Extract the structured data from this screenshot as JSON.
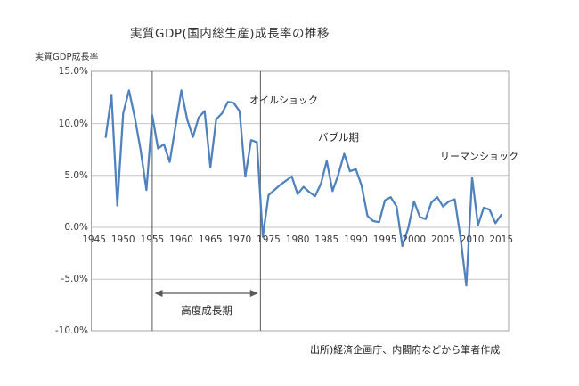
{
  "title": "実質GDP(国内総生産)成長率の推移",
  "axis_title": "実質GDP成長率",
  "source": "出所)経済企画庁、内閣府などから筆者作成",
  "annotations": {
    "oil_shock": "オイルショック",
    "bubble": "バブル期",
    "lehman": "リーマンショック",
    "high_growth": "高度成長期"
  },
  "colors": {
    "line": "#4f81bd",
    "gridline": "#c6c6c6",
    "plot_border": "#a6a6a6",
    "event_line": "#595959",
    "arrow": "#595959",
    "text": "#333333"
  },
  "chart_data": {
    "type": "line",
    "title": "実質GDP(国内総生産)成長率の推移",
    "ylabel": "実質GDP成長率",
    "xlabel": "",
    "ylim": [
      -10,
      15
    ],
    "xlim": [
      1945,
      2016.5
    ],
    "grid": true,
    "legend": "none",
    "y_ticks": [
      "15.0%",
      "10.0%",
      "5.0%",
      "0.0%",
      "-5.0%",
      "-10.0%"
    ],
    "y_tick_values": [
      15,
      10,
      5,
      0,
      -5,
      -10
    ],
    "x_ticks": [
      1945,
      1950,
      1955,
      1960,
      1965,
      1970,
      1975,
      1980,
      1985,
      1990,
      1995,
      2000,
      2005,
      2010,
      2015
    ],
    "event_line_years": [
      1955,
      1973.6
    ],
    "high_growth_arrow_span_years": [
      1955.4,
      1973.2
    ],
    "years": [
      1947,
      1948,
      1949,
      1950,
      1951,
      1952,
      1953,
      1954,
      1955,
      1956,
      1957,
      1958,
      1959,
      1960,
      1961,
      1962,
      1963,
      1964,
      1965,
      1966,
      1967,
      1968,
      1969,
      1970,
      1971,
      1972,
      1973,
      1974,
      1975,
      1976,
      1977,
      1978,
      1979,
      1980,
      1981,
      1982,
      1983,
      1984,
      1985,
      1986,
      1987,
      1988,
      1989,
      1990,
      1991,
      1992,
      1993,
      1994,
      1995,
      1996,
      1997,
      1998,
      1999,
      2000,
      2001,
      2002,
      2003,
      2004,
      2005,
      2006,
      2007,
      2008,
      2009,
      2010,
      2011,
      2012,
      2013,
      2014,
      2015
    ],
    "values": [
      8.7,
      12.7,
      2.1,
      11.0,
      13.2,
      10.6,
      7.5,
      3.6,
      10.8,
      7.6,
      8.0,
      6.3,
      9.7,
      13.2,
      10.4,
      8.7,
      10.6,
      11.2,
      5.8,
      10.4,
      11.0,
      12.1,
      12.0,
      11.2,
      4.9,
      8.4,
      8.2,
      -0.9,
      3.1,
      3.6,
      4.1,
      4.5,
      4.9,
      3.2,
      3.9,
      3.4,
      3.0,
      4.2,
      6.4,
      3.5,
      5.1,
      7.1,
      5.4,
      5.6,
      4.0,
      1.1,
      0.6,
      0.5,
      2.6,
      2.9,
      2.0,
      -1.8,
      -0.1,
      2.5,
      1.0,
      0.8,
      2.4,
      2.9,
      2.0,
      2.5,
      2.7,
      -1.0,
      -5.6,
      4.8,
      0.2,
      1.9,
      1.7,
      0.4,
      1.2
    ]
  }
}
